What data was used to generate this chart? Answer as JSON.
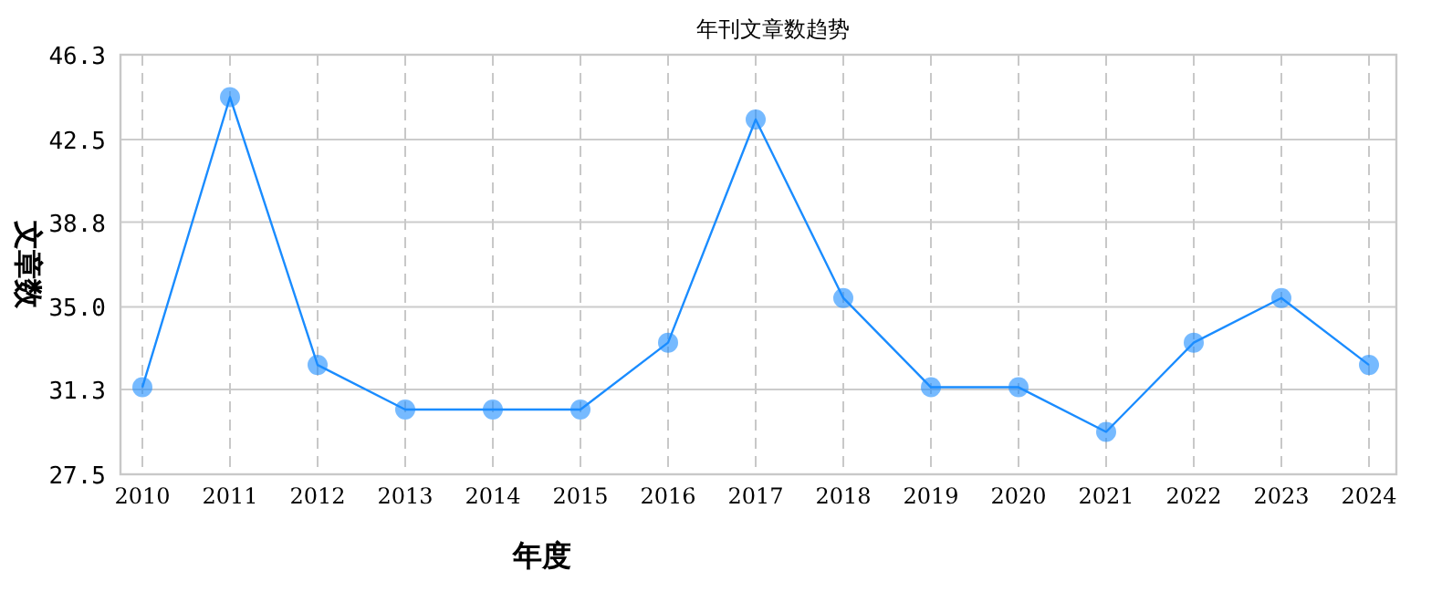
{
  "chart_data": {
    "type": "line",
    "title": "年刊文章数趋势",
    "xlabel": "年度",
    "ylabel": "文章数",
    "categories": [
      "2010",
      "2011",
      "2012",
      "2013",
      "2014",
      "2015",
      "2016",
      "2017",
      "2018",
      "2019",
      "2020",
      "2021",
      "2022",
      "2023",
      "2024"
    ],
    "series": [
      {
        "color": "#1a8cff",
        "values": [
          31.4,
          44.4,
          32.4,
          30.4,
          30.4,
          30.4,
          33.4,
          43.4,
          35.4,
          31.4,
          31.4,
          29.4,
          33.4,
          35.4,
          32.4
        ]
      }
    ],
    "ylim": [
      27.5,
      46.3
    ],
    "yticks": [
      27.5,
      31.3,
      {
        "value": 35,
        "label": "35.0"
      },
      38.8,
      42.5,
      46.3
    ],
    "grid": true,
    "marker": "circle",
    "line_style": "solid"
  }
}
